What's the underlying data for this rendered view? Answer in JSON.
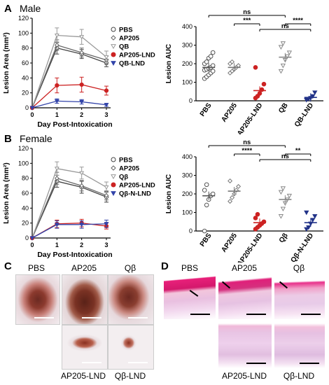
{
  "panels": {
    "A": {
      "letter": "A",
      "sex": "Male"
    },
    "B": {
      "letter": "B",
      "sex": "Female"
    },
    "C": {
      "letter": "C"
    },
    "D": {
      "letter": "D"
    }
  },
  "chart_data": [
    {
      "id": "A-line",
      "type": "line",
      "ylabel": "Lesion Area (mm²)",
      "xlabel": "Day Post-Intoxication",
      "x": [
        0,
        1,
        2,
        3
      ],
      "ylim": [
        0,
        120
      ],
      "yticks": [
        0,
        20,
        40,
        60,
        80,
        100,
        120
      ],
      "legend_position": "top-right",
      "series": [
        {
          "name": "PBS",
          "color": "#444444",
          "marker": "o",
          "values": [
            0,
            80,
            72,
            60
          ],
          "err": [
            0,
            8,
            6,
            5
          ]
        },
        {
          "name": "AP205",
          "color": "#666666",
          "marker": "D",
          "values": [
            0,
            84,
            74,
            64
          ],
          "err": [
            0,
            7,
            6,
            5
          ]
        },
        {
          "name": "QB",
          "color": "#999999",
          "marker": "v",
          "values": [
            0,
            97,
            95,
            68
          ],
          "err": [
            0,
            10,
            10,
            8
          ]
        },
        {
          "name": "AP205-LND",
          "color": "#cc2222",
          "marker": "o",
          "values": [
            0,
            30,
            31,
            23
          ],
          "err": [
            0,
            10,
            10,
            6
          ]
        },
        {
          "name": "QB-LND",
          "color": "#3344aa",
          "marker": "v",
          "values": [
            0,
            9,
            8,
            4
          ],
          "err": [
            0,
            3,
            3,
            2
          ]
        }
      ]
    },
    {
      "id": "A-scatter",
      "type": "scatter",
      "ylabel": "Lesion AUC",
      "categories": [
        "PBS",
        "AP205",
        "AP205-LND",
        "QB",
        "QB-LND"
      ],
      "ylim": [
        0,
        400
      ],
      "yticks": [
        0,
        100,
        200,
        300,
        400
      ],
      "colors": [
        "#555555",
        "#777777",
        "#cc2222",
        "#888888",
        "#223388"
      ],
      "means": [
        180,
        180,
        55,
        235,
        18
      ],
      "points": [
        [
          120,
          130,
          140,
          150,
          160,
          165,
          170,
          175,
          180,
          190,
          200,
          210,
          230,
          240,
          260
        ],
        [
          150,
          160,
          170,
          180,
          190,
          200,
          210
        ],
        [
          15,
          25,
          40,
          60,
          90,
          180
        ],
        [
          160,
          190,
          220,
          240,
          260,
          290,
          310
        ],
        [
          5,
          10,
          15,
          25,
          45
        ]
      ],
      "annotations": [
        {
          "text": "ns",
          "from": 0,
          "to": 3
        },
        {
          "text": "***",
          "from": 1,
          "to": 2
        },
        {
          "text": "ns",
          "from": 2,
          "to": 4
        },
        {
          "text": "****",
          "from": 3,
          "to": 4
        }
      ]
    },
    {
      "id": "B-line",
      "type": "line",
      "ylabel": "Lesion Area (mm²)",
      "xlabel": "Day Post-Intoxication",
      "x": [
        0,
        1,
        2,
        3
      ],
      "ylim": [
        0,
        120
      ],
      "yticks": [
        0,
        20,
        40,
        60,
        80,
        100,
        120
      ],
      "legend_position": "top-right",
      "series": [
        {
          "name": "PBS",
          "color": "#444444",
          "marker": "o",
          "values": [
            0,
            76,
            68,
            55
          ],
          "err": [
            0,
            8,
            8,
            7
          ]
        },
        {
          "name": "AP205",
          "color": "#666666",
          "marker": "D",
          "values": [
            0,
            80,
            70,
            57
          ],
          "err": [
            0,
            8,
            7,
            6
          ]
        },
        {
          "name": "Qβ",
          "color": "#999999",
          "marker": "v",
          "values": [
            0,
            93,
            87,
            68
          ],
          "err": [
            0,
            9,
            8,
            7
          ]
        },
        {
          "name": "AP205-LND",
          "color": "#cc2222",
          "marker": "o",
          "values": [
            0,
            19,
            20,
            16
          ],
          "err": [
            0,
            5,
            5,
            4
          ]
        },
        {
          "name": "Qβ-N-LND",
          "color": "#3344aa",
          "marker": "v",
          "values": [
            0,
            18,
            18,
            19
          ],
          "err": [
            0,
            5,
            5,
            5
          ]
        }
      ]
    },
    {
      "id": "B-scatter",
      "type": "scatter",
      "ylabel": "Lesion AUC",
      "categories": [
        "PBS",
        "AP205",
        "AP205-LND",
        "Qβ",
        "Qβ-N-LND"
      ],
      "ylim": [
        0,
        400
      ],
      "yticks": [
        0,
        100,
        200,
        300,
        400
      ],
      "colors": [
        "#555555",
        "#777777",
        "#cc2222",
        "#888888",
        "#223388"
      ],
      "means": [
        190,
        215,
        45,
        170,
        45
      ],
      "points": [
        [
          0,
          140,
          170,
          190,
          200,
          220,
          250
        ],
        [
          160,
          180,
          200,
          220,
          240,
          270
        ],
        [
          10,
          20,
          30,
          40,
          50,
          70,
          90
        ],
        [
          80,
          120,
          150,
          170,
          190,
          210,
          230
        ],
        [
          10,
          20,
          40,
          60,
          80,
          100
        ]
      ],
      "annotations": [
        {
          "text": "ns",
          "from": 0,
          "to": 3
        },
        {
          "text": "****",
          "from": 1,
          "to": 2
        },
        {
          "text": "ns",
          "from": 2,
          "to": 4
        },
        {
          "text": "**",
          "from": 3,
          "to": 4
        }
      ]
    }
  ],
  "photos_C": {
    "top": [
      "PBS",
      "AP205",
      "Qβ"
    ],
    "bottom": [
      "AP205-LND",
      "Qβ-LND"
    ]
  },
  "photos_D": {
    "top": [
      "PBS",
      "AP205",
      "Qβ"
    ],
    "bottom": [
      "AP205-LND",
      "Qβ-LND"
    ]
  }
}
